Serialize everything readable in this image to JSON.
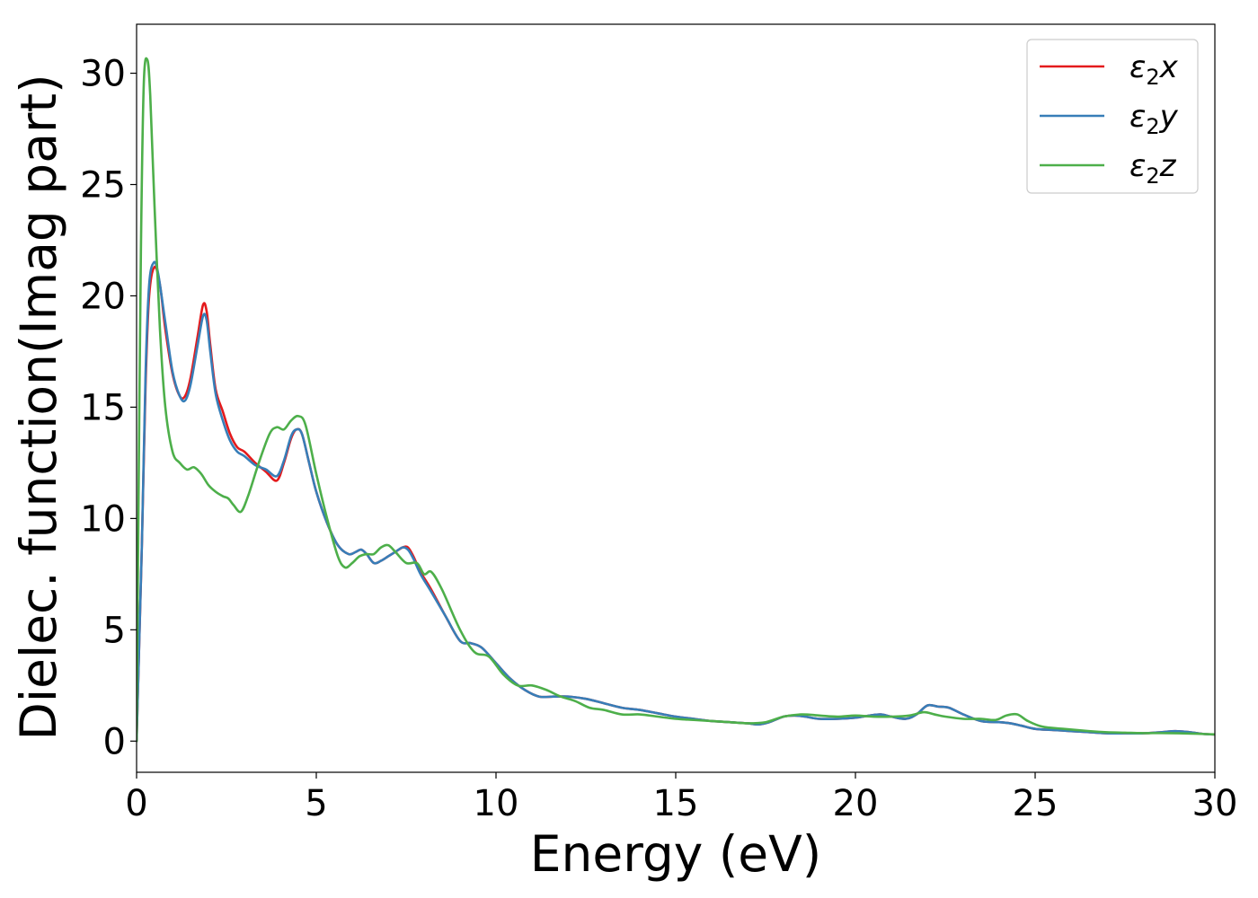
{
  "chart_data": {
    "type": "line",
    "xlabel": "Energy (eV)",
    "ylabel": "Dielec. function(Imag part)",
    "xlim": [
      0,
      30
    ],
    "ylim": [
      -1.4,
      32.2
    ],
    "xticks": [
      0,
      5,
      10,
      15,
      20,
      25,
      30
    ],
    "yticks": [
      0,
      5,
      10,
      15,
      20,
      25,
      30
    ],
    "xtick_labels": [
      "0",
      "5",
      "10",
      "15",
      "20",
      "25",
      "30"
    ],
    "ytick_labels": [
      "0",
      "5",
      "10",
      "15",
      "20",
      "25",
      "30"
    ],
    "grid": false,
    "legend_position": "top-right",
    "series": [
      {
        "name": "ε₂x",
        "legend_base": "ε",
        "legend_sub": "2",
        "legend_var": "x",
        "color": "#e41a1c",
        "x": [
          0,
          0.05,
          0.15,
          0.25,
          0.35,
          0.5,
          0.65,
          0.8,
          1.0,
          1.2,
          1.35,
          1.5,
          1.7,
          1.85,
          1.95,
          2.05,
          2.2,
          2.4,
          2.6,
          2.8,
          3.0,
          3.3,
          3.6,
          3.9,
          4.1,
          4.3,
          4.45,
          4.6,
          4.8,
          5.0,
          5.3,
          5.6,
          5.9,
          6.1,
          6.25,
          6.4,
          6.6,
          6.8,
          7.0,
          7.2,
          7.4,
          7.55,
          7.7,
          7.9,
          8.2,
          8.6,
          9.0,
          9.3,
          9.6,
          10.0,
          10.4,
          10.8,
          11.2,
          11.6,
          12.0,
          12.5,
          13.0,
          13.5,
          14.0,
          14.5,
          15.0,
          15.5,
          16.0,
          16.5,
          17.0,
          17.3,
          17.6,
          18.0,
          18.3,
          18.6,
          19.0,
          19.5,
          20.0,
          20.4,
          20.7,
          21.0,
          21.4,
          21.7,
          22.0,
          22.3,
          22.6,
          23.0,
          23.5,
          24.0,
          24.3,
          24.6,
          25.0,
          25.5,
          26.0,
          26.5,
          27.0,
          27.5,
          28.0,
          28.5,
          28.9,
          29.3,
          29.7,
          30.0
        ],
        "y": [
          0,
          3,
          9,
          16,
          20,
          21.3,
          20.5,
          18.5,
          16.5,
          15.5,
          15.5,
          16.3,
          18.2,
          19.6,
          19.3,
          17.8,
          15.8,
          14.8,
          13.8,
          13.2,
          13.0,
          12.5,
          12.1,
          11.7,
          12.5,
          13.6,
          14.0,
          13.8,
          12.5,
          11.2,
          9.8,
          8.8,
          8.4,
          8.5,
          8.6,
          8.4,
          8.0,
          8.1,
          8.3,
          8.5,
          8.7,
          8.7,
          8.3,
          7.6,
          6.8,
          5.6,
          4.5,
          4.4,
          4.2,
          3.5,
          2.8,
          2.3,
          2.0,
          2.0,
          2.0,
          1.9,
          1.7,
          1.5,
          1.4,
          1.25,
          1.1,
          1.0,
          0.9,
          0.85,
          0.8,
          0.75,
          0.85,
          1.1,
          1.15,
          1.1,
          1.0,
          1.0,
          1.05,
          1.15,
          1.2,
          1.1,
          1.0,
          1.2,
          1.6,
          1.55,
          1.5,
          1.2,
          0.9,
          0.85,
          0.8,
          0.7,
          0.55,
          0.5,
          0.45,
          0.4,
          0.35,
          0.35,
          0.35,
          0.4,
          0.45,
          0.4,
          0.32,
          0.3
        ]
      },
      {
        "name": "ε₂y",
        "legend_base": "ε",
        "legend_sub": "2",
        "legend_var": "y",
        "color": "#377eb8",
        "x": [
          0,
          0.05,
          0.15,
          0.25,
          0.35,
          0.48,
          0.6,
          0.8,
          1.0,
          1.2,
          1.35,
          1.5,
          1.7,
          1.85,
          1.95,
          2.05,
          2.2,
          2.4,
          2.6,
          2.8,
          3.0,
          3.3,
          3.6,
          3.9,
          4.1,
          4.3,
          4.45,
          4.6,
          4.8,
          5.0,
          5.3,
          5.6,
          5.9,
          6.1,
          6.25,
          6.4,
          6.6,
          6.8,
          7.0,
          7.2,
          7.4,
          7.55,
          7.7,
          7.9,
          8.2,
          8.6,
          9.0,
          9.3,
          9.6,
          10.0,
          10.4,
          10.8,
          11.2,
          11.6,
          12.0,
          12.5,
          13.0,
          13.5,
          14.0,
          14.5,
          15.0,
          15.5,
          16.0,
          16.5,
          17.0,
          17.3,
          17.6,
          18.0,
          18.3,
          18.6,
          19.0,
          19.5,
          20.0,
          20.4,
          20.7,
          21.0,
          21.4,
          21.7,
          22.0,
          22.3,
          22.6,
          23.0,
          23.5,
          24.0,
          24.3,
          24.6,
          25.0,
          25.5,
          26.0,
          26.5,
          27.0,
          27.5,
          28.0,
          28.5,
          28.9,
          29.3,
          29.7,
          30.0
        ],
        "y": [
          0,
          3,
          9,
          16.5,
          20.5,
          21.5,
          21.0,
          18.8,
          16.6,
          15.5,
          15.3,
          16.0,
          17.8,
          19.1,
          18.9,
          17.5,
          15.6,
          14.4,
          13.5,
          13.0,
          12.8,
          12.4,
          12.2,
          11.9,
          12.6,
          13.7,
          14.0,
          13.8,
          12.5,
          11.2,
          9.8,
          8.8,
          8.4,
          8.5,
          8.6,
          8.4,
          8.0,
          8.1,
          8.3,
          8.5,
          8.7,
          8.6,
          8.2,
          7.5,
          6.7,
          5.6,
          4.5,
          4.4,
          4.2,
          3.5,
          2.8,
          2.3,
          2.0,
          2.0,
          2.0,
          1.9,
          1.7,
          1.5,
          1.4,
          1.25,
          1.1,
          1.0,
          0.9,
          0.85,
          0.8,
          0.75,
          0.85,
          1.1,
          1.15,
          1.1,
          1.0,
          1.0,
          1.05,
          1.15,
          1.2,
          1.1,
          1.0,
          1.2,
          1.6,
          1.55,
          1.5,
          1.2,
          0.9,
          0.85,
          0.8,
          0.7,
          0.55,
          0.5,
          0.45,
          0.4,
          0.35,
          0.35,
          0.35,
          0.4,
          0.45,
          0.4,
          0.32,
          0.3
        ]
      },
      {
        "name": "ε₂z",
        "legend_base": "ε",
        "legend_sub": "2",
        "legend_var": "z",
        "color": "#4daf4a",
        "x": [
          0,
          0.05,
          0.12,
          0.2,
          0.3,
          0.38,
          0.5,
          0.65,
          0.8,
          1.0,
          1.2,
          1.4,
          1.6,
          1.8,
          2.0,
          2.2,
          2.4,
          2.55,
          2.7,
          2.9,
          3.1,
          3.4,
          3.7,
          3.9,
          4.1,
          4.3,
          4.5,
          4.7,
          5.0,
          5.3,
          5.6,
          5.8,
          6.0,
          6.2,
          6.4,
          6.6,
          6.8,
          7.0,
          7.2,
          7.5,
          7.8,
          8.0,
          8.2,
          8.5,
          9.0,
          9.4,
          9.8,
          10.2,
          10.6,
          11.0,
          11.4,
          11.8,
          12.2,
          12.6,
          13.0,
          13.5,
          14.0,
          14.5,
          15.0,
          15.5,
          16.0,
          16.5,
          17.0,
          17.5,
          18.0,
          18.5,
          19.0,
          19.5,
          20.0,
          20.5,
          21.0,
          21.5,
          21.9,
          22.2,
          22.5,
          23.0,
          23.5,
          23.9,
          24.2,
          24.5,
          24.8,
          25.2,
          25.8,
          26.5,
          27.0,
          27.5,
          28.0,
          28.5,
          29.0,
          29.5,
          30.0
        ],
        "y": [
          0,
          10,
          22,
          29.5,
          30.6,
          29.0,
          24.0,
          18.5,
          15.0,
          13.0,
          12.5,
          12.2,
          12.3,
          12.0,
          11.5,
          11.2,
          11.0,
          10.9,
          10.6,
          10.3,
          11.0,
          12.5,
          13.8,
          14.1,
          14.0,
          14.4,
          14.6,
          14.2,
          12.0,
          10.0,
          8.3,
          7.8,
          8.0,
          8.3,
          8.4,
          8.4,
          8.7,
          8.8,
          8.5,
          8.0,
          8.0,
          7.5,
          7.6,
          6.8,
          5.0,
          4.0,
          3.8,
          3.0,
          2.5,
          2.5,
          2.3,
          2.0,
          1.8,
          1.5,
          1.4,
          1.2,
          1.2,
          1.1,
          1.0,
          0.95,
          0.9,
          0.85,
          0.8,
          0.85,
          1.1,
          1.2,
          1.15,
          1.1,
          1.15,
          1.1,
          1.1,
          1.15,
          1.3,
          1.2,
          1.1,
          1.0,
          1.0,
          0.95,
          1.15,
          1.2,
          0.9,
          0.65,
          0.55,
          0.45,
          0.4,
          0.38,
          0.36,
          0.36,
          0.35,
          0.33,
          0.3
        ]
      }
    ]
  }
}
